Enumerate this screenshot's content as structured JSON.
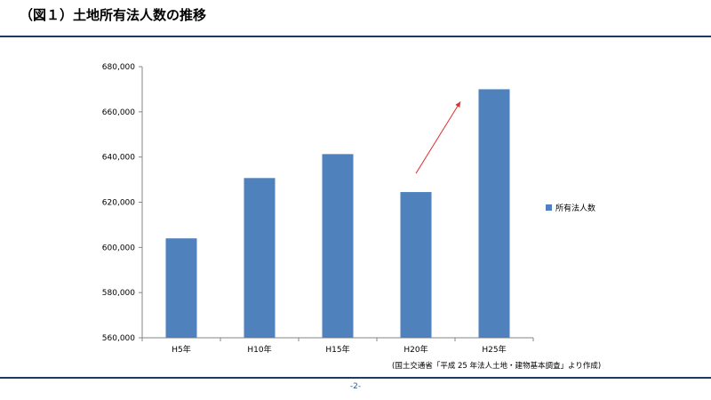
{
  "slide": {
    "title": "（図１）土地所有法人数の推移",
    "source": "(国土交通省「平成 25 年法人土地・建物基本調査」より作成)",
    "page_number": "-2-"
  },
  "colors": {
    "bar": "#4f81bd",
    "axis": "#868686",
    "arrow": "#e03030",
    "rule": "#1f3a5c"
  },
  "chart_data": {
    "type": "bar",
    "title": "",
    "xlabel": "",
    "ylabel": "",
    "categories": [
      "H5年",
      "H10年",
      "H15年",
      "H20年",
      "H25年"
    ],
    "series": [
      {
        "name": "所有法人数",
        "values": [
          604000,
          630700,
          641300,
          624500,
          670000
        ]
      }
    ],
    "ylim": [
      560000,
      680000
    ],
    "y_ticks": [
      560000,
      580000,
      600000,
      620000,
      640000,
      660000,
      680000
    ],
    "y_tick_labels": [
      "560,000",
      "580,000",
      "600,000",
      "620,000",
      "640,000",
      "660,000",
      "680,000"
    ],
    "grid": false,
    "legend_position": "right",
    "annotations": [
      {
        "type": "arrow",
        "from_category": "H20年",
        "to_category": "H25年",
        "meaning": "upward trend"
      }
    ]
  }
}
